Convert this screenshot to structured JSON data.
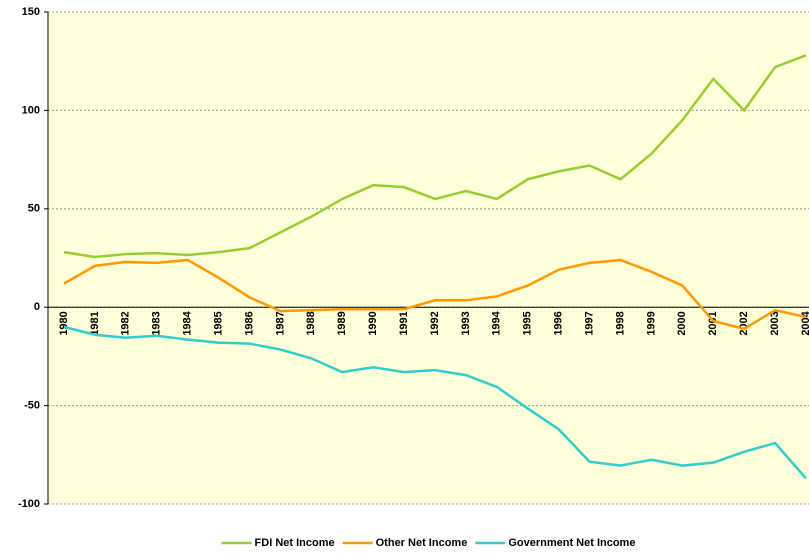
{
  "chart_data": {
    "type": "line",
    "categories": [
      "1980",
      "1981",
      "1982",
      "1983",
      "1984",
      "1985",
      "1986",
      "1987",
      "1988",
      "1989",
      "1990",
      "1991",
      "1992",
      "1993",
      "1994",
      "1995",
      "1996",
      "1997",
      "1998",
      "1999",
      "2000",
      "2001",
      "2002",
      "2003",
      "2004"
    ],
    "series": [
      {
        "name": "FDI Net Income",
        "color": "#99cc33",
        "values": [
          28,
          25.5,
          27,
          27.5,
          26.5,
          28,
          30,
          38,
          46,
          55,
          62,
          61,
          55,
          59,
          55,
          65,
          69,
          72,
          65,
          78,
          95,
          116,
          100,
          122,
          128
        ]
      },
      {
        "name": "Other Net Income",
        "color": "#ff9900",
        "values": [
          12,
          21,
          23,
          22.5,
          24,
          15,
          5,
          -2,
          -1.5,
          -1,
          -1,
          -1,
          3.5,
          3.5,
          5.5,
          11,
          19,
          22.5,
          24,
          18,
          11,
          -7,
          -11,
          -1.5,
          -5
        ]
      },
      {
        "name": "Government Net Income",
        "color": "#33cccc",
        "values": [
          -10,
          -14,
          -15.5,
          -14.5,
          -16.5,
          -18,
          -18.5,
          -21.5,
          -26,
          -33,
          -30.5,
          -33,
          -32,
          -34.5,
          -40.5,
          -51.5,
          -62,
          -78.5,
          -80.5,
          -77.5,
          -80.5,
          -79,
          -73.5,
          -69,
          -87
        ]
      }
    ],
    "ylim": [
      -100,
      150
    ],
    "yticks": [
      -100,
      -50,
      0,
      50,
      100,
      150
    ],
    "grid": true,
    "legend": "bottom"
  }
}
